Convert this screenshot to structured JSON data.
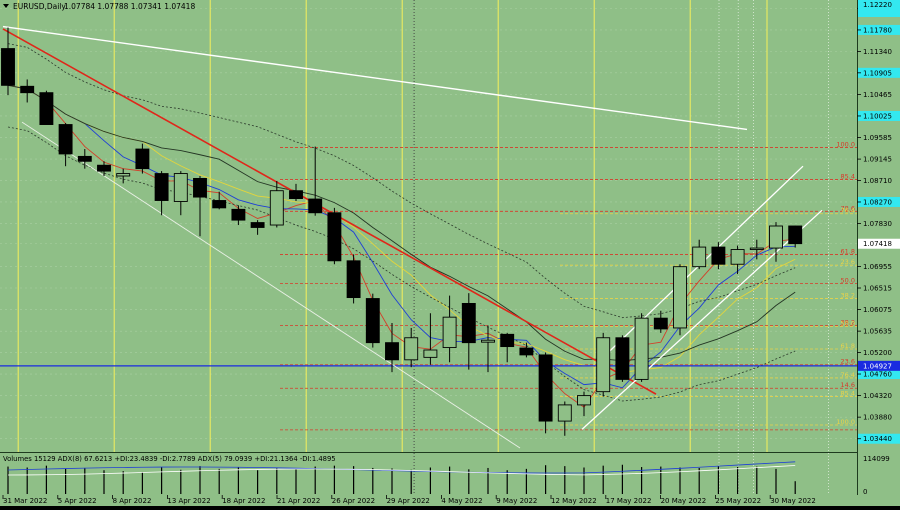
{
  "header": {
    "symbol_label": "EURUSD,Daily",
    "ohlc": "1.07784 1.07788 1.07341 1.07418"
  },
  "volumes_label": "Volumes 15129  ADX(8) 67.6213 +DI:23.4839 -DI:2.7789  ADX(5) 79.0939 +DI:21.1364 -DI:1.4895",
  "colors": {
    "background": "#8fbf87",
    "bull_candle": "#8fbf87",
    "bear_candle": "#000000",
    "trendline_red": "#e0261a",
    "channel_white": "#ffffff",
    "horizontal_blue": "#1a2be0",
    "vertical_yellow": "#f5f05a",
    "fib_red": "#d83a2a",
    "fib_yellow": "#e8d34a",
    "price_box_cyan": "#33e8f0"
  },
  "chart_data": {
    "type": "candlestick",
    "price_scale": {
      "ticks": [
        "1.12220",
        "1.11780",
        "1.11340",
        "1.10905",
        "1.10465",
        "1.10025",
        "1.09585",
        "1.09145",
        "1.08710",
        "1.08270",
        "1.07830",
        "1.07418",
        "1.06955",
        "1.06515",
        "1.06075",
        "1.05635",
        "1.05200",
        "1.04927",
        "1.04760",
        "1.04320",
        "1.03880",
        "1.03440"
      ],
      "range": [
        1.0321,
        1.1235
      ],
      "current_price": "1.07418",
      "blue_level_price": "1.04927"
    },
    "date_labels": [
      "31 Mar 2022",
      "5 Apr 2022",
      "8 Apr 2022",
      "13 Apr 2022",
      "18 Apr 2022",
      "21 Apr 2022",
      "26 Apr 2022",
      "29 Apr 2022",
      "4 May 2022",
      "9 May 2022",
      "12 May 2022",
      "17 May 2022",
      "20 May 2022",
      "25 May 2022",
      "30 May 2022"
    ],
    "candles": [
      {
        "o": 1.114,
        "h": 1.1183,
        "l": 1.1045,
        "c": 1.1065
      },
      {
        "o": 1.1063,
        "h": 1.1077,
        "l": 1.103,
        "c": 1.105
      },
      {
        "o": 1.105,
        "h": 1.1054,
        "l": 1.099,
        "c": 1.0985
      },
      {
        "o": 1.0985,
        "h": 1.0988,
        "l": 1.09,
        "c": 1.0925
      },
      {
        "o": 1.092,
        "h": 1.0935,
        "l": 1.0895,
        "c": 1.091
      },
      {
        "o": 1.0902,
        "h": 1.091,
        "l": 1.088,
        "c": 1.089
      },
      {
        "o": 1.088,
        "h": 1.0895,
        "l": 1.0865,
        "c": 1.0885
      },
      {
        "o": 1.0935,
        "h": 1.0946,
        "l": 1.0885,
        "c": 1.0895
      },
      {
        "o": 1.0885,
        "h": 1.089,
        "l": 1.08,
        "c": 1.083
      },
      {
        "o": 1.0828,
        "h": 1.089,
        "l": 1.08,
        "c": 1.0885
      },
      {
        "o": 1.0875,
        "h": 1.088,
        "l": 1.0757,
        "c": 1.0837
      },
      {
        "o": 1.083,
        "h": 1.0848,
        "l": 1.0812,
        "c": 1.0815
      },
      {
        "o": 1.0812,
        "h": 1.082,
        "l": 1.078,
        "c": 1.079
      },
      {
        "o": 1.0785,
        "h": 1.079,
        "l": 1.076,
        "c": 1.0775
      },
      {
        "o": 1.078,
        "h": 1.087,
        "l": 1.0775,
        "c": 1.085
      },
      {
        "o": 1.085,
        "h": 1.0864,
        "l": 1.0829,
        "c": 1.0834
      },
      {
        "o": 1.0833,
        "h": 1.094,
        "l": 1.0799,
        "c": 1.0805
      },
      {
        "o": 1.0805,
        "h": 1.0815,
        "l": 1.07,
        "c": 1.0707
      },
      {
        "o": 1.0707,
        "h": 1.072,
        "l": 1.062,
        "c": 1.0632
      },
      {
        "o": 1.063,
        "h": 1.064,
        "l": 1.053,
        "c": 1.054
      },
      {
        "o": 1.054,
        "h": 1.058,
        "l": 1.048,
        "c": 1.0505
      },
      {
        "o": 1.0505,
        "h": 1.057,
        "l": 1.049,
        "c": 1.055
      },
      {
        "o": 1.051,
        "h": 1.06,
        "l": 1.0495,
        "c": 1.0525
      },
      {
        "o": 1.053,
        "h": 1.0636,
        "l": 1.05,
        "c": 1.0592
      },
      {
        "o": 1.062,
        "h": 1.0641,
        "l": 1.0485,
        "c": 1.054
      },
      {
        "o": 1.0541,
        "h": 1.0575,
        "l": 1.048,
        "c": 1.0545
      },
      {
        "o": 1.0557,
        "h": 1.056,
        "l": 1.05,
        "c": 1.0532
      },
      {
        "o": 1.0529,
        "h": 1.054,
        "l": 1.051,
        "c": 1.0515
      },
      {
        "o": 1.0515,
        "h": 1.052,
        "l": 1.0355,
        "c": 1.038
      },
      {
        "o": 1.038,
        "h": 1.042,
        "l": 1.035,
        "c": 1.0413
      },
      {
        "o": 1.0413,
        "h": 1.044,
        "l": 1.039,
        "c": 1.0432
      },
      {
        "o": 1.044,
        "h": 1.056,
        "l": 1.043,
        "c": 1.055
      },
      {
        "o": 1.055,
        "h": 1.0555,
        "l": 1.046,
        "c": 1.0465
      },
      {
        "o": 1.0465,
        "h": 1.06,
        "l": 1.046,
        "c": 1.059
      },
      {
        "o": 1.059,
        "h": 1.0605,
        "l": 1.056,
        "c": 1.0568
      },
      {
        "o": 1.057,
        "h": 1.07,
        "l": 1.0555,
        "c": 1.0695
      },
      {
        "o": 1.0695,
        "h": 1.075,
        "l": 1.069,
        "c": 1.0735
      },
      {
        "o": 1.0735,
        "h": 1.0745,
        "l": 1.069,
        "c": 1.07
      },
      {
        "o": 1.07,
        "h": 1.0738,
        "l": 1.068,
        "c": 1.073
      },
      {
        "o": 1.073,
        "h": 1.075,
        "l": 1.071,
        "c": 1.0733
      },
      {
        "o": 1.0733,
        "h": 1.0786,
        "l": 1.0705,
        "c": 1.0778
      },
      {
        "o": 1.0778,
        "h": 1.0779,
        "l": 1.0734,
        "c": 1.0742
      }
    ],
    "fib_levels": [
      {
        "label": "100.0",
        "price": 1.0938,
        "color": "red",
        "labelx": "right"
      },
      {
        "label": "85.4",
        "price": 1.0873,
        "color": "red",
        "labelx": "right"
      },
      {
        "label": "78.6",
        "price": 1.0808,
        "color": "red",
        "labelx": "right"
      },
      {
        "label": "76.4",
        "price": 1.0803,
        "color": "yellow",
        "labelx": "right"
      },
      {
        "label": "61.8",
        "price": 1.072,
        "color": "red",
        "labelx": "right"
      },
      {
        "label": "23.6",
        "price": 1.0698,
        "color": "yellow",
        "labelx": "right"
      },
      {
        "label": "50.0",
        "price": 1.0661,
        "color": "red",
        "labelx": "right"
      },
      {
        "label": "38.2",
        "price": 1.063,
        "color": "yellow",
        "labelx": "right"
      },
      {
        "label": "38.2",
        "price": 1.0575,
        "color": "red",
        "labelx": "right"
      },
      {
        "label": "50.0",
        "price": 1.0573,
        "color": "yellow",
        "labelx": "right"
      },
      {
        "label": "61.8",
        "price": 1.0527,
        "color": "yellow",
        "labelx": "right"
      },
      {
        "label": "23.6",
        "price": 1.0495,
        "color": "red",
        "labelx": "right"
      },
      {
        "label": "76.4",
        "price": 1.0468,
        "color": "yellow",
        "labelx": "right"
      },
      {
        "label": "14.6",
        "price": 1.0447,
        "color": "red",
        "labelx": "right"
      },
      {
        "label": "85.4",
        "price": 1.043,
        "color": "yellow",
        "labelx": "right"
      },
      {
        "label": "100.0",
        "price": 1.0372,
        "color": "yellow",
        "labelx": "right"
      },
      {
        "label": "",
        "price": 1.0362,
        "color": "red",
        "labelx": "right"
      }
    ],
    "volume_scale": {
      "ticks": [
        "114099",
        "0"
      ]
    },
    "volumes": [
      60,
      58,
      62,
      55,
      57,
      52,
      50,
      48,
      59,
      53,
      61,
      55,
      58,
      52,
      57,
      54,
      60,
      62,
      61,
      57,
      56,
      53,
      58,
      60,
      54,
      57,
      52,
      55,
      63,
      61,
      58,
      62,
      64,
      59,
      60,
      58,
      57,
      61,
      59,
      60,
      55,
      28
    ]
  }
}
